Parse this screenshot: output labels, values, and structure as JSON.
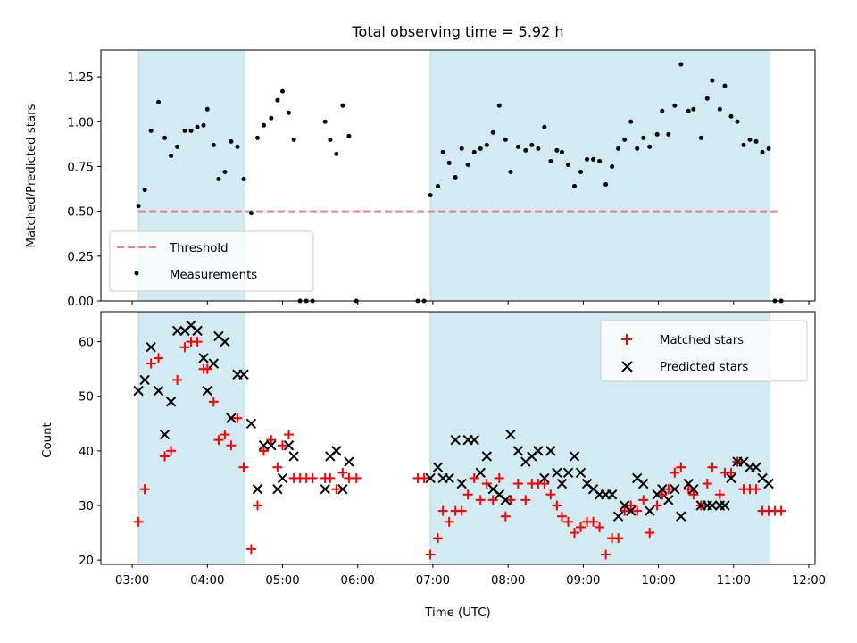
{
  "chart_data": {
    "title": "Total observing time = 5.92 h",
    "colors": {
      "shade": "#add8e6",
      "threshold": "#f08080",
      "measurement": "#000000",
      "matched": "#ff0000",
      "predicted": "#000000"
    },
    "shaded_intervals": [
      [
        "03:05",
        "04:30"
      ],
      [
        "06:58",
        "11:29"
      ]
    ],
    "x_axis": {
      "label": "Time (UTC)",
      "range": [
        "02:35",
        "12:05"
      ],
      "ticks": [
        "03:00",
        "04:00",
        "05:00",
        "06:00",
        "07:00",
        "08:00",
        "09:00",
        "10:00",
        "11:00",
        "12:00"
      ]
    },
    "top": {
      "type": "scatter",
      "ylabel": "Matched/Predicted stars",
      "ylim": [
        0,
        1.4
      ],
      "yticks": [
        "0.00",
        "0.25",
        "0.50",
        "0.75",
        "1.00",
        "1.25"
      ],
      "legend_position": "lower-left",
      "threshold": {
        "name": "Threshold",
        "value": 0.5,
        "x_range": [
          "03:05",
          "11:38"
        ]
      },
      "measurements": {
        "name": "Measurements",
        "points": [
          [
            "03:05",
            0.53
          ],
          [
            "03:10",
            0.62
          ],
          [
            "03:15",
            0.95
          ],
          [
            "03:21",
            1.11
          ],
          [
            "03:26",
            0.91
          ],
          [
            "03:31",
            0.81
          ],
          [
            "03:36",
            0.86
          ],
          [
            "03:42",
            0.95
          ],
          [
            "03:47",
            0.95
          ],
          [
            "03:52",
            0.97
          ],
          [
            "03:57",
            0.98
          ],
          [
            "04:00",
            1.07
          ],
          [
            "04:05",
            0.87
          ],
          [
            "04:09",
            0.68
          ],
          [
            "04:14",
            0.72
          ],
          [
            "04:19",
            0.89
          ],
          [
            "04:24",
            0.86
          ],
          [
            "04:29",
            0.68
          ],
          [
            "04:35",
            0.49
          ],
          [
            "04:40",
            0.91
          ],
          [
            "04:45",
            0.98
          ],
          [
            "04:51",
            1.02
          ],
          [
            "04:56",
            1.12
          ],
          [
            "05:00",
            1.17
          ],
          [
            "05:05",
            1.05
          ],
          [
            "05:09",
            0.9
          ],
          [
            "05:14",
            0.0
          ],
          [
            "05:19",
            0.0
          ],
          [
            "05:24",
            0.0
          ],
          [
            "05:34",
            1.0
          ],
          [
            "05:38",
            0.9
          ],
          [
            "05:43",
            0.82
          ],
          [
            "05:48",
            1.09
          ],
          [
            "05:53",
            0.92
          ],
          [
            "05:59",
            0.0
          ],
          [
            "06:48",
            0.0
          ],
          [
            "06:53",
            0.0
          ],
          [
            "06:58",
            0.59
          ],
          [
            "07:04",
            0.64
          ],
          [
            "07:08",
            0.83
          ],
          [
            "07:13",
            0.77
          ],
          [
            "07:18",
            0.69
          ],
          [
            "07:23",
            0.85
          ],
          [
            "07:28",
            0.76
          ],
          [
            "07:33",
            0.83
          ],
          [
            "07:38",
            0.85
          ],
          [
            "07:43",
            0.87
          ],
          [
            "07:48",
            0.94
          ],
          [
            "07:53",
            1.09
          ],
          [
            "07:58",
            0.9
          ],
          [
            "08:02",
            0.72
          ],
          [
            "08:08",
            0.86
          ],
          [
            "08:14",
            0.84
          ],
          [
            "08:19",
            0.87
          ],
          [
            "08:24",
            0.85
          ],
          [
            "08:29",
            0.97
          ],
          [
            "08:34",
            0.78
          ],
          [
            "08:39",
            0.84
          ],
          [
            "08:43",
            0.83
          ],
          [
            "08:48",
            0.76
          ],
          [
            "08:53",
            0.64
          ],
          [
            "08:58",
            0.72
          ],
          [
            "09:03",
            0.79
          ],
          [
            "09:08",
            0.79
          ],
          [
            "09:13",
            0.78
          ],
          [
            "09:18",
            0.65
          ],
          [
            "09:23",
            0.75
          ],
          [
            "09:28",
            0.85
          ],
          [
            "09:33",
            0.9
          ],
          [
            "09:38",
            1.0
          ],
          [
            "09:43",
            0.85
          ],
          [
            "09:48",
            0.91
          ],
          [
            "09:53",
            0.86
          ],
          [
            "09:59",
            0.93
          ],
          [
            "10:03",
            1.06
          ],
          [
            "10:08",
            0.93
          ],
          [
            "10:13",
            1.09
          ],
          [
            "10:18",
            1.32
          ],
          [
            "10:24",
            1.06
          ],
          [
            "10:28",
            1.07
          ],
          [
            "10:34",
            0.91
          ],
          [
            "10:39",
            1.13
          ],
          [
            "10:43",
            1.23
          ],
          [
            "10:49",
            1.07
          ],
          [
            "10:53",
            1.2
          ],
          [
            "10:58",
            1.03
          ],
          [
            "11:03",
            1.0
          ],
          [
            "11:08",
            0.87
          ],
          [
            "11:13",
            0.9
          ],
          [
            "11:18",
            0.89
          ],
          [
            "11:23",
            0.83
          ],
          [
            "11:28",
            0.85
          ],
          [
            "11:33",
            0.0
          ],
          [
            "11:38",
            0.0
          ]
        ]
      }
    },
    "bottom": {
      "type": "scatter",
      "ylabel": "Count",
      "ylim": [
        19.2,
        65.5
      ],
      "yticks": [
        "20",
        "30",
        "40",
        "50",
        "60"
      ],
      "legend_position": "upper-right",
      "matched": {
        "name": "Matched stars",
        "points": [
          [
            "03:05",
            27
          ],
          [
            "03:10",
            33
          ],
          [
            "03:15",
            56
          ],
          [
            "03:21",
            57
          ],
          [
            "03:26",
            39
          ],
          [
            "03:31",
            40
          ],
          [
            "03:36",
            53
          ],
          [
            "03:42",
            59
          ],
          [
            "03:47",
            60
          ],
          [
            "03:52",
            60
          ],
          [
            "03:57",
            55
          ],
          [
            "04:00",
            55
          ],
          [
            "04:05",
            49
          ],
          [
            "04:09",
            42
          ],
          [
            "04:14",
            43
          ],
          [
            "04:19",
            41
          ],
          [
            "04:24",
            46
          ],
          [
            "04:29",
            37
          ],
          [
            "04:35",
            22
          ],
          [
            "04:40",
            30
          ],
          [
            "04:45",
            40
          ],
          [
            "04:51",
            42
          ],
          [
            "04:56",
            37
          ],
          [
            "05:00",
            41
          ],
          [
            "05:05",
            43
          ],
          [
            "05:09",
            35
          ],
          [
            "05:14",
            35
          ],
          [
            "05:19",
            35
          ],
          [
            "05:24",
            35
          ],
          [
            "05:34",
            35
          ],
          [
            "05:38",
            35
          ],
          [
            "05:43",
            33
          ],
          [
            "05:48",
            36
          ],
          [
            "05:53",
            35
          ],
          [
            "05:59",
            35
          ],
          [
            "06:48",
            35
          ],
          [
            "06:53",
            35
          ],
          [
            "06:58",
            21
          ],
          [
            "07:04",
            24
          ],
          [
            "07:08",
            29
          ],
          [
            "07:13",
            27
          ],
          [
            "07:18",
            29
          ],
          [
            "07:23",
            29
          ],
          [
            "07:28",
            32
          ],
          [
            "07:33",
            35
          ],
          [
            "07:38",
            31
          ],
          [
            "07:43",
            34
          ],
          [
            "07:48",
            31
          ],
          [
            "07:53",
            35
          ],
          [
            "07:58",
            28
          ],
          [
            "08:02",
            31
          ],
          [
            "08:08",
            34
          ],
          [
            "08:14",
            31
          ],
          [
            "08:19",
            34
          ],
          [
            "08:24",
            34
          ],
          [
            "08:29",
            34
          ],
          [
            "08:34",
            32
          ],
          [
            "08:39",
            30
          ],
          [
            "08:43",
            28
          ],
          [
            "08:48",
            27
          ],
          [
            "08:53",
            25
          ],
          [
            "08:58",
            26
          ],
          [
            "09:03",
            27
          ],
          [
            "09:08",
            27
          ],
          [
            "09:13",
            26
          ],
          [
            "09:18",
            21
          ],
          [
            "09:23",
            24
          ],
          [
            "09:28",
            24
          ],
          [
            "09:33",
            29
          ],
          [
            "09:38",
            30
          ],
          [
            "09:43",
            29
          ],
          [
            "09:48",
            31
          ],
          [
            "09:53",
            25
          ],
          [
            "09:59",
            30
          ],
          [
            "10:03",
            32
          ],
          [
            "10:08",
            33
          ],
          [
            "10:13",
            36
          ],
          [
            "10:18",
            37
          ],
          [
            "10:24",
            33
          ],
          [
            "10:28",
            32
          ],
          [
            "10:34",
            30
          ],
          [
            "10:39",
            34
          ],
          [
            "10:43",
            37
          ],
          [
            "10:49",
            32
          ],
          [
            "10:53",
            36
          ],
          [
            "10:58",
            36
          ],
          [
            "11:03",
            38
          ],
          [
            "11:08",
            33
          ],
          [
            "11:13",
            33
          ],
          [
            "11:18",
            33
          ],
          [
            "11:23",
            29
          ],
          [
            "11:28",
            29
          ],
          [
            "11:33",
            29
          ],
          [
            "11:38",
            29
          ]
        ]
      },
      "predicted": {
        "name": "Predicted stars",
        "points": [
          [
            "03:05",
            51
          ],
          [
            "03:10",
            53
          ],
          [
            "03:15",
            59
          ],
          [
            "03:21",
            51
          ],
          [
            "03:26",
            43
          ],
          [
            "03:31",
            49
          ],
          [
            "03:36",
            62
          ],
          [
            "03:42",
            62
          ],
          [
            "03:47",
            63
          ],
          [
            "03:52",
            62
          ],
          [
            "03:57",
            57
          ],
          [
            "04:00",
            51
          ],
          [
            "04:05",
            56
          ],
          [
            "04:09",
            61
          ],
          [
            "04:14",
            60
          ],
          [
            "04:19",
            46
          ],
          [
            "04:24",
            54
          ],
          [
            "04:29",
            54
          ],
          [
            "04:35",
            45
          ],
          [
            "04:40",
            33
          ],
          [
            "04:45",
            41
          ],
          [
            "04:51",
            41
          ],
          [
            "04:56",
            33
          ],
          [
            "05:00",
            35
          ],
          [
            "05:05",
            41
          ],
          [
            "05:09",
            39
          ],
          [
            "05:34",
            33
          ],
          [
            "05:38",
            39
          ],
          [
            "05:43",
            40
          ],
          [
            "05:48",
            33
          ],
          [
            "05:53",
            38
          ],
          [
            "06:58",
            35
          ],
          [
            "07:04",
            37
          ],
          [
            "07:08",
            35
          ],
          [
            "07:13",
            35
          ],
          [
            "07:18",
            42
          ],
          [
            "07:23",
            34
          ],
          [
            "07:28",
            42
          ],
          [
            "07:33",
            42
          ],
          [
            "07:38",
            36
          ],
          [
            "07:43",
            39
          ],
          [
            "07:48",
            33
          ],
          [
            "07:53",
            32
          ],
          [
            "07:58",
            31
          ],
          [
            "08:02",
            43
          ],
          [
            "08:08",
            40
          ],
          [
            "08:14",
            38
          ],
          [
            "08:19",
            39
          ],
          [
            "08:24",
            40
          ],
          [
            "08:29",
            35
          ],
          [
            "08:34",
            40
          ],
          [
            "08:39",
            36
          ],
          [
            "08:43",
            34
          ],
          [
            "08:48",
            36
          ],
          [
            "08:53",
            39
          ],
          [
            "08:58",
            36
          ],
          [
            "09:03",
            34
          ],
          [
            "09:08",
            33
          ],
          [
            "09:13",
            32
          ],
          [
            "09:18",
            32
          ],
          [
            "09:23",
            32
          ],
          [
            "09:28",
            28
          ],
          [
            "09:33",
            30
          ],
          [
            "09:38",
            29
          ],
          [
            "09:43",
            35
          ],
          [
            "09:48",
            34
          ],
          [
            "09:53",
            29
          ],
          [
            "09:59",
            32
          ],
          [
            "10:03",
            33
          ],
          [
            "10:08",
            31
          ],
          [
            "10:13",
            33
          ],
          [
            "10:18",
            28
          ],
          [
            "10:24",
            34
          ],
          [
            "10:28",
            33
          ],
          [
            "10:34",
            30
          ],
          [
            "10:39",
            30
          ],
          [
            "10:43",
            30
          ],
          [
            "10:49",
            30
          ],
          [
            "10:53",
            30
          ],
          [
            "10:58",
            35
          ],
          [
            "11:03",
            38
          ],
          [
            "11:08",
            38
          ],
          [
            "11:13",
            37
          ],
          [
            "11:18",
            37
          ],
          [
            "11:23",
            35
          ],
          [
            "11:28",
            34
          ]
        ]
      }
    }
  }
}
